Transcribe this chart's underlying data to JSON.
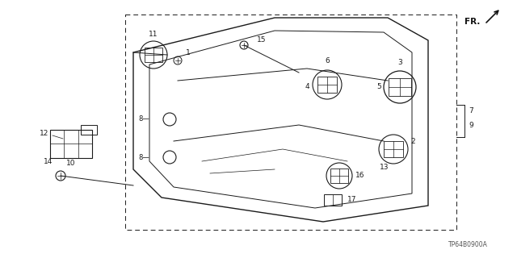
{
  "bg_color": "#ffffff",
  "line_color": "#1a1a1a",
  "label_color": "#1a1a1a",
  "diagram_code": "TP64B0900A",
  "figsize": [
    6.4,
    3.2
  ],
  "dpi": 100
}
